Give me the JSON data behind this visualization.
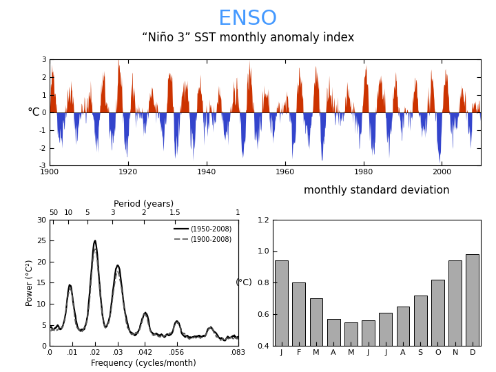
{
  "title": "ENSO",
  "title_color": "#4499FF",
  "subtitle": "“Niño 3” SST monthly anomaly index",
  "top_panel": {
    "xlim": [
      1900,
      2010
    ],
    "ylim": [
      -3.0,
      3.0
    ],
    "yticks": [
      -3.0,
      -2.0,
      -1.0,
      0.0,
      1.0,
      2.0,
      3.0
    ],
    "xticks": [
      1900,
      1920,
      1940,
      1960,
      1980,
      2000
    ],
    "ylabel": "°C",
    "pos_color": "#CC3300",
    "neg_color": "#3344CC"
  },
  "bottom_left": {
    "period_title": "Period (years)",
    "xlabel": "Frequency (cycles/month)",
    "ylabel": "Power (°C²)",
    "xlim": [
      0.0,
      0.083
    ],
    "ylim": [
      0,
      30
    ],
    "yticks": [
      0,
      5,
      10,
      15,
      20,
      25,
      30
    ],
    "xticks": [
      0.0,
      0.01,
      0.02,
      0.03,
      0.042,
      0.056,
      0.083
    ],
    "xtick_labels": [
      ".0",
      ".01",
      ".02",
      ".03",
      ".042",
      ".056",
      ".083"
    ],
    "period_years": [
      50,
      10,
      5,
      3,
      2,
      1.5,
      1
    ],
    "legend1": "(1950-2008)",
    "legend2": "(1900-2008)"
  },
  "bottom_right": {
    "title": "monthly standard deviation",
    "months": [
      "J",
      "F",
      "M",
      "A",
      "M",
      "J",
      "J",
      "A",
      "S",
      "O",
      "N",
      "D"
    ],
    "values": [
      0.94,
      0.8,
      0.7,
      0.57,
      0.55,
      0.56,
      0.61,
      0.65,
      0.72,
      0.82,
      0.94,
      0.98
    ],
    "ylabel": "(°C)",
    "ylim": [
      0.4,
      1.2
    ],
    "yticks": [
      0.4,
      0.6,
      0.8,
      1.0,
      1.2
    ],
    "bar_color": "#AAAAAA"
  }
}
